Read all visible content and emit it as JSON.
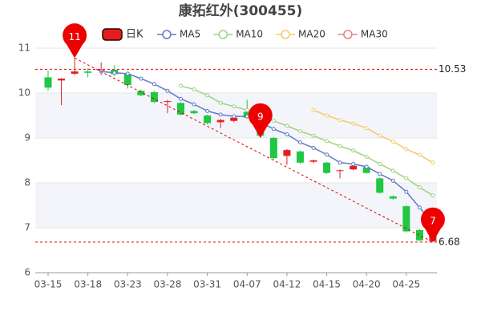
{
  "chart_data": {
    "type": "candlestick",
    "title": "康拓红外(300455)",
    "categories": [
      "03-15",
      null,
      null,
      "03-18",
      null,
      null,
      "03-23",
      null,
      null,
      "03-28",
      null,
      null,
      "03-31",
      null,
      null,
      "04-07",
      null,
      null,
      "04-12",
      null,
      null,
      "04-15",
      null,
      null,
      "04-20",
      null,
      null,
      "04-25",
      null,
      null
    ],
    "ylim": [
      6,
      11
    ],
    "yticks": [
      6,
      7,
      8,
      9,
      10,
      11
    ],
    "grid": true,
    "series": [
      {
        "name": "日K",
        "up_color": "#e41e1e",
        "down_color": "#1fc742",
        "open": [
          10.35,
          10.28,
          10.43,
          10.48,
          10.52,
          10.52,
          10.42,
          10.05,
          10.02,
          9.82,
          9.78,
          9.6,
          9.5,
          9.35,
          9.38,
          9.58,
          9.35,
          9.0,
          8.6,
          8.7,
          8.47,
          8.45,
          8.28,
          8.3,
          8.35,
          8.1,
          7.7,
          7.48,
          6.95,
          6.7
        ],
        "high": [
          10.5,
          10.33,
          10.78,
          10.55,
          10.68,
          10.62,
          10.45,
          10.08,
          10.05,
          9.85,
          9.8,
          9.62,
          9.52,
          9.42,
          9.47,
          9.85,
          9.38,
          9.02,
          8.75,
          8.72,
          8.52,
          8.47,
          8.3,
          8.4,
          8.38,
          8.12,
          7.72,
          7.5,
          6.97,
          6.85
        ],
        "low": [
          10.05,
          9.73,
          10.4,
          10.35,
          10.4,
          10.38,
          10.1,
          9.93,
          9.78,
          9.55,
          9.5,
          9.53,
          9.3,
          9.22,
          9.35,
          9.43,
          9.0,
          8.52,
          8.4,
          8.42,
          8.44,
          8.2,
          8.1,
          8.28,
          8.2,
          7.76,
          7.62,
          6.9,
          6.7,
          6.68
        ],
        "close": [
          10.12,
          10.32,
          10.48,
          10.45,
          10.52,
          10.42,
          10.18,
          9.95,
          9.8,
          9.82,
          9.52,
          9.55,
          9.33,
          9.4,
          9.45,
          9.45,
          9.05,
          8.55,
          8.73,
          8.45,
          8.5,
          8.22,
          8.28,
          8.38,
          8.22,
          7.78,
          7.65,
          6.92,
          6.72,
          6.82
        ]
      }
    ],
    "lines": [
      {
        "name": "MA5",
        "color": "#6478c8",
        "values": [
          null,
          null,
          null,
          null,
          10.48,
          10.45,
          10.43,
          10.32,
          10.2,
          10.05,
          9.87,
          9.75,
          9.6,
          9.52,
          9.48,
          9.48,
          9.35,
          9.2,
          9.08,
          8.9,
          8.78,
          8.63,
          8.45,
          8.42,
          8.36,
          8.2,
          8.05,
          7.8,
          7.45,
          7.1
        ]
      },
      {
        "name": "MA10",
        "color": "#9ed37d",
        "values": [
          null,
          null,
          null,
          null,
          null,
          null,
          null,
          null,
          null,
          null,
          10.16,
          10.08,
          9.95,
          9.78,
          9.7,
          9.62,
          9.5,
          9.38,
          9.27,
          9.15,
          9.05,
          8.93,
          8.82,
          8.72,
          8.58,
          8.42,
          8.27,
          8.1,
          7.9,
          7.72
        ]
      },
      {
        "name": "MA20",
        "color": "#f5c96b",
        "values": [
          null,
          null,
          null,
          null,
          null,
          null,
          null,
          null,
          null,
          null,
          null,
          null,
          null,
          null,
          null,
          null,
          null,
          null,
          null,
          null,
          9.62,
          9.5,
          9.4,
          9.32,
          9.22,
          9.05,
          8.92,
          8.75,
          8.62,
          8.45
        ]
      },
      {
        "name": "MA30",
        "color": "#ef7f7f",
        "values": [
          null,
          null,
          null,
          null,
          null,
          null,
          null,
          null,
          null,
          null,
          null,
          null,
          null,
          null,
          null,
          null,
          null,
          null,
          null,
          null,
          null,
          null,
          null,
          null,
          null,
          null,
          null,
          null,
          null,
          null
        ]
      }
    ],
    "hlines": [
      10.53,
      6.68
    ],
    "pins": [
      {
        "value": 11,
        "at": 2
      },
      {
        "value": 9,
        "at": 16
      },
      {
        "value": 7,
        "at": 29
      }
    ]
  }
}
